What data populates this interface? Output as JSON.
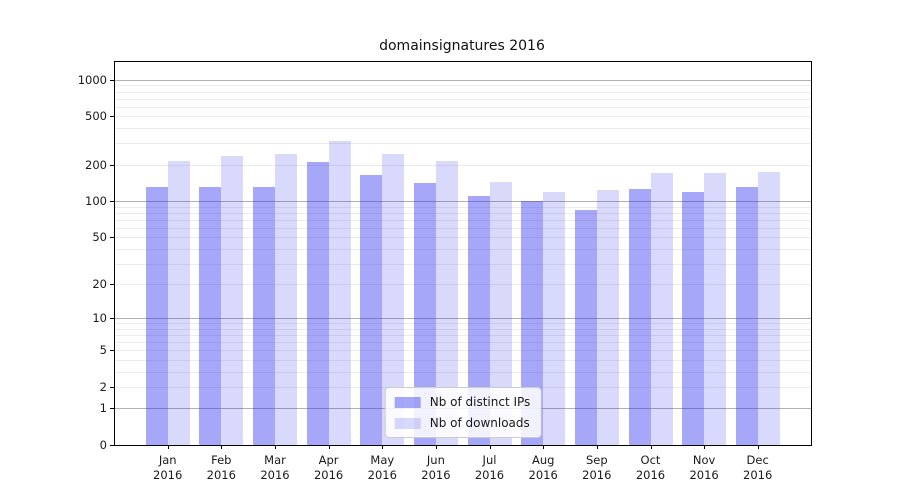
{
  "title": "domainsignatures 2016",
  "chart_data": {
    "type": "bar",
    "title": "domainsignatures 2016",
    "categories": [
      "Jan 2016",
      "Feb 2016",
      "Mar 2016",
      "Apr 2016",
      "May 2016",
      "Jun 2016",
      "Jul 2016",
      "Aug 2016",
      "Sep 2016",
      "Oct 2016",
      "Nov 2016",
      "Dec 2016"
    ],
    "series": [
      {
        "name": "Nb of distinct IPs",
        "color": "rgba(45,45,240,0.42)",
        "values": [
          130,
          130,
          130,
          210,
          165,
          140,
          110,
          100,
          85,
          125,
          120,
          130
        ]
      },
      {
        "name": "Nb of downloads",
        "color": "rgba(45,45,240,0.18)",
        "values": [
          215,
          235,
          245,
          315,
          245,
          215,
          145,
          120,
          123,
          170,
          170,
          175
        ]
      }
    ],
    "yscale": "symlog",
    "yticks": [
      0,
      1,
      2,
      5,
      10,
      20,
      50,
      100,
      200,
      500,
      1000
    ],
    "ylim": [
      0,
      1400
    ],
    "xlabel": "",
    "ylabel": "",
    "grid": "horizontal major and minor",
    "legend_position": "lower center",
    "colors": {
      "major_grid": "#b0b0b0",
      "minor_grid": "#ececec",
      "spine": "#000000",
      "tick_label": "#1a1a1a"
    }
  }
}
